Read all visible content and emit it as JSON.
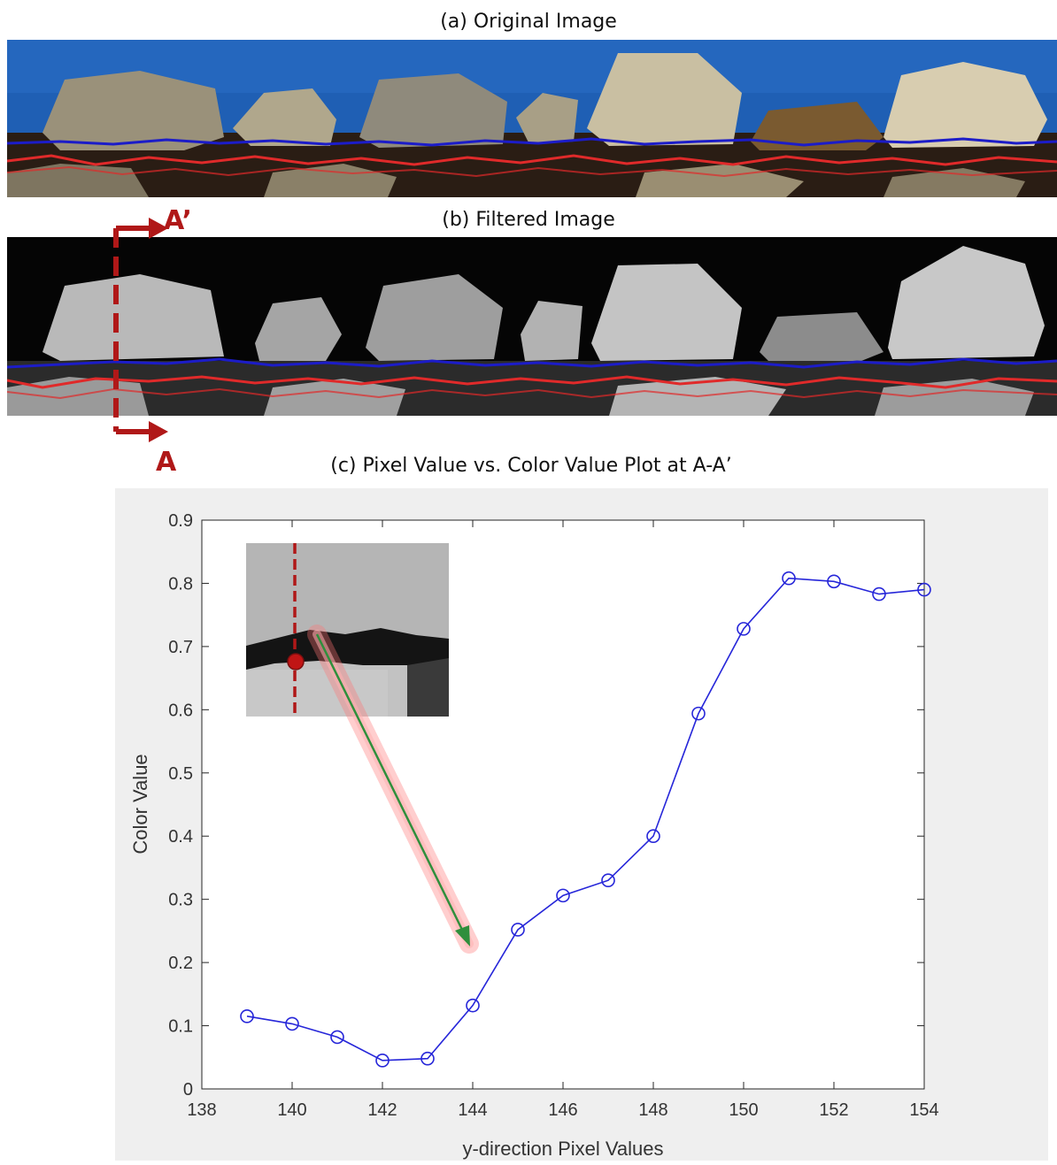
{
  "panels": {
    "original_title": "(a) Original Image",
    "filtered_title": "(b) Filtered Image",
    "plot_title": "(c) Pixel Value vs. Color Value Plot at A-A’",
    "section_labels": {
      "top": "A’",
      "bottom": "A"
    }
  },
  "colors": {
    "series": "#2626d9",
    "section_line": "#b01818",
    "top_trace": "#1c1cc8",
    "bottom_trace": "#e02a2a",
    "sky": "#1f5fb4",
    "chart_bg": "#efefef"
  },
  "chart_data": {
    "type": "line",
    "title": "",
    "xlabel": "y-direction Pixel Values",
    "ylabel": "Color Value",
    "xlim": [
      138,
      154
    ],
    "ylim": [
      0,
      0.9
    ],
    "xticks": [
      138,
      140,
      142,
      144,
      146,
      148,
      150,
      152,
      154
    ],
    "yticks": [
      0,
      0.1,
      0.2,
      0.3,
      0.4,
      0.5,
      0.6,
      0.7,
      0.8,
      0.9
    ],
    "grid": false,
    "marker": "circle",
    "series": [
      {
        "x": [
          139,
          140,
          141,
          142,
          143,
          144,
          145,
          146,
          147,
          148,
          149,
          150,
          151,
          152,
          153,
          154
        ],
        "y": [
          0.115,
          0.103,
          0.082,
          0.045,
          0.048,
          0.132,
          0.252,
          0.306,
          0.33,
          0.4,
          0.594,
          0.728,
          0.808,
          0.803,
          0.783,
          0.79
        ]
      }
    ]
  }
}
